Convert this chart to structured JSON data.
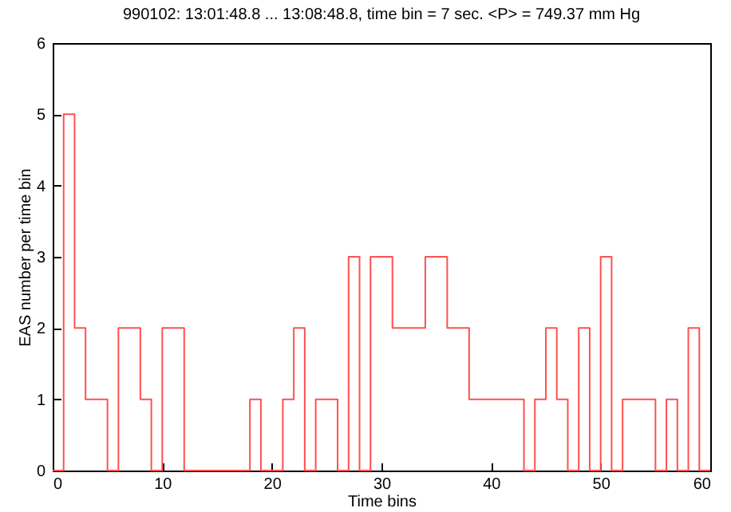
{
  "chart_data": {
    "type": "histogram",
    "title": "990102: 13:01:48.8 ... 13:08:48.8, time bin = 7 sec.  <P> = 749.37 mm Hg",
    "xlabel": "Time bins",
    "ylabel": "EAS number per time bin",
    "bins": [
      0,
      1,
      2,
      3,
      4,
      5,
      6,
      7,
      8,
      9,
      10,
      11,
      12,
      13,
      14,
      15,
      16,
      17,
      18,
      19,
      20,
      21,
      22,
      23,
      24,
      25,
      26,
      27,
      28,
      29,
      30,
      31,
      32,
      33,
      34,
      35,
      36,
      37,
      38,
      39,
      40,
      41,
      42,
      43,
      44,
      45,
      46,
      47,
      48,
      49,
      50,
      51,
      52,
      53,
      54,
      55,
      56,
      57,
      58,
      59,
      60
    ],
    "values": [
      0,
      5,
      2,
      1,
      1,
      0,
      2,
      2,
      1,
      0,
      2,
      2,
      0,
      0,
      0,
      0,
      0,
      0,
      1,
      0,
      0,
      1,
      2,
      0,
      1,
      1,
      0,
      3,
      0,
      3,
      3,
      2,
      2,
      2,
      3,
      3,
      2,
      2,
      1,
      1,
      1,
      1,
      1,
      0,
      1,
      2,
      1,
      0,
      2,
      0,
      3,
      0,
      1,
      1,
      1,
      0,
      1,
      0,
      2,
      0
    ],
    "color": "#ff5050",
    "xlim": [
      0,
      60
    ],
    "xticks": [
      0,
      10,
      20,
      30,
      40,
      50,
      60
    ],
    "ylim": [
      0,
      6
    ],
    "yticks": [
      0,
      1,
      2,
      3,
      4,
      5,
      6
    ],
    "grid": false
  }
}
